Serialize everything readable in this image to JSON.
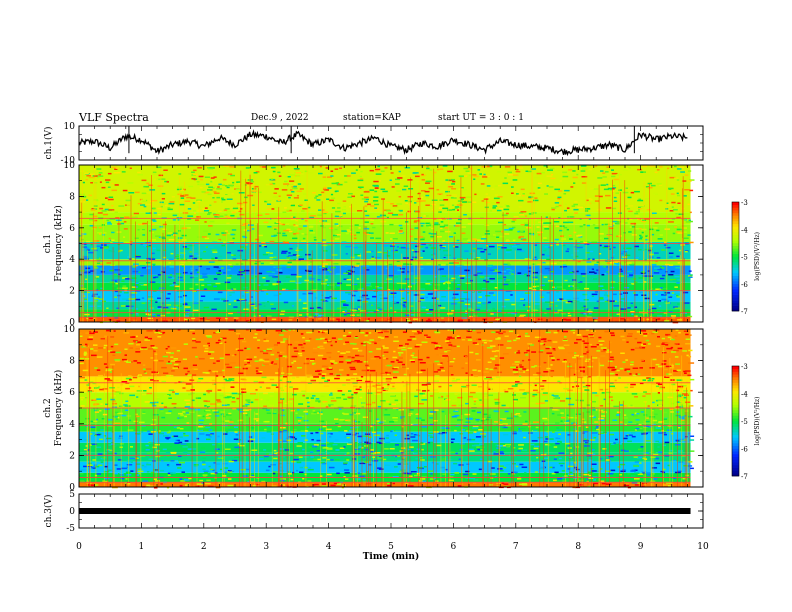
{
  "header": {
    "title": "VLF Spectra",
    "date": "Dec.9 , 2022",
    "station": "station=KAP",
    "start": "start UT = 3 : 0 : 1"
  },
  "chart_data": [
    {
      "type": "line",
      "ylabel": "ch.1(V)",
      "ylim": [
        -10,
        10
      ],
      "yticks": [
        "10",
        "-10"
      ],
      "xlim": [
        0,
        10
      ],
      "x": [
        0,
        0.25,
        0.5,
        0.75,
        1,
        1.25,
        1.5,
        1.75,
        2,
        2.25,
        2.5,
        2.75,
        3,
        3.25,
        3.5,
        3.75,
        4,
        4.25,
        4.5,
        4.75,
        5,
        5.25,
        5.5,
        5.75,
        6,
        6.25,
        6.5,
        6.75,
        7,
        7.25,
        7.5,
        7.75,
        8,
        8.25,
        8.5,
        8.75,
        9,
        9.25,
        9.5,
        9.75
      ],
      "y": [
        0,
        1,
        -3,
        4,
        2,
        -5,
        -1,
        1,
        -2,
        3,
        -1,
        5,
        4,
        0,
        5,
        -1,
        2,
        -3,
        0,
        3,
        -2,
        -4,
        0,
        -2,
        2,
        -1,
        -4,
        1,
        -1,
        -2,
        -3,
        -5,
        -4,
        -3,
        -1,
        -4,
        5,
        2,
        4,
        3
      ],
      "line_color": "#000000"
    },
    {
      "type": "heatmap",
      "ylabel": "ch.1 Frequency (kHz)",
      "ylim": [
        0,
        10
      ],
      "yticks": [
        "0",
        "2",
        "4",
        "6",
        "8",
        "10"
      ],
      "xlim": [
        0,
        10
      ],
      "colorbar": {
        "label": "log(PSD)(V²/Hz)",
        "range": [
          -7,
          -3
        ],
        "ticks": [
          "-3",
          "-4",
          "-5",
          "-6",
          "-7"
        ]
      },
      "bands": [
        {
          "f": [
            0,
            0.3
          ],
          "level": -3.3
        },
        {
          "f": [
            0.3,
            0.8
          ],
          "level": -5.0
        },
        {
          "f": [
            0.8,
            1.3
          ],
          "level": -5.3
        },
        {
          "f": [
            1.3,
            2.0
          ],
          "level": -5.6
        },
        {
          "f": [
            2.0,
            2.5
          ],
          "level": -5.0
        },
        {
          "f": [
            2.5,
            3.0
          ],
          "level": -5.3
        },
        {
          "f": [
            3.0,
            3.6
          ],
          "level": -5.8
        },
        {
          "f": [
            3.6,
            4.0
          ],
          "level": -4.5
        },
        {
          "f": [
            4.0,
            5.1
          ],
          "level": -5.4
        },
        {
          "f": [
            5.1,
            6.2
          ],
          "level": -4.5
        },
        {
          "f": [
            6.2,
            7.0
          ],
          "level": -4.4
        },
        {
          "f": [
            7.0,
            10.0
          ],
          "level": -4.2
        }
      ]
    },
    {
      "type": "heatmap",
      "ylabel": "ch.2 Frequency (kHz)",
      "ylim": [
        0,
        10
      ],
      "yticks": [
        "0",
        "2",
        "4",
        "6",
        "8",
        "10"
      ],
      "xlim": [
        0,
        10
      ],
      "colorbar": {
        "label": "log(PSD)(V²/Hz)",
        "range": [
          -7,
          -3
        ],
        "ticks": [
          "-3",
          "-4",
          "-5",
          "-6",
          "-7"
        ]
      },
      "bands": [
        {
          "f": [
            0,
            0.3
          ],
          "level": -3.4
        },
        {
          "f": [
            0.3,
            0.9
          ],
          "level": -5.0
        },
        {
          "f": [
            0.9,
            1.6
          ],
          "level": -5.6
        },
        {
          "f": [
            1.6,
            2.2
          ],
          "level": -5.2
        },
        {
          "f": [
            2.2,
            2.8
          ],
          "level": -5.1
        },
        {
          "f": [
            2.8,
            3.5
          ],
          "level": -5.6
        },
        {
          "f": [
            3.5,
            4.0
          ],
          "level": -4.9
        },
        {
          "f": [
            4.0,
            5.0
          ],
          "level": -4.7
        },
        {
          "f": [
            5.0,
            6.0
          ],
          "level": -4.4
        },
        {
          "f": [
            6.0,
            7.0
          ],
          "level": -3.9
        },
        {
          "f": [
            7.0,
            10.0
          ],
          "level": -3.5
        }
      ]
    },
    {
      "type": "line",
      "ylabel": "ch.3(V)",
      "ylim": [
        -5,
        5
      ],
      "yticks": [
        "5",
        "0",
        "-5"
      ],
      "xlim": [
        0,
        10
      ],
      "x": [
        0,
        9.8
      ],
      "y": [
        0,
        0
      ],
      "line_color": "#000000"
    }
  ],
  "xaxis": {
    "label": "Time (min)",
    "ticks": [
      "0",
      "1",
      "2",
      "3",
      "4",
      "5",
      "6",
      "7",
      "8",
      "9",
      "10"
    ]
  }
}
